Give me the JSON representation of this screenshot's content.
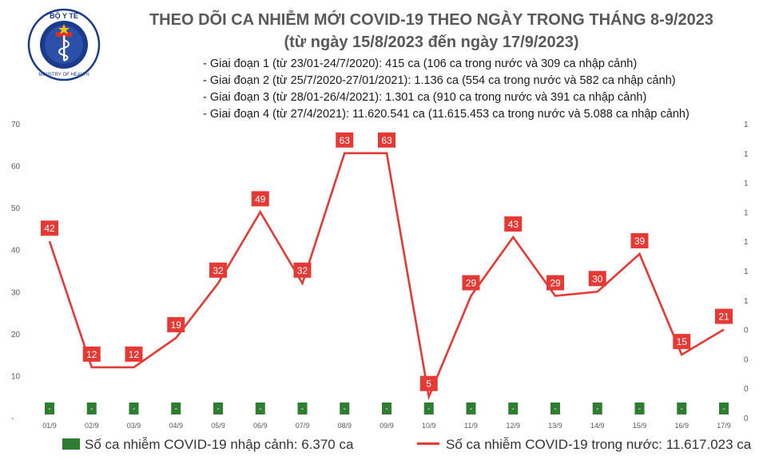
{
  "header": {
    "title": "THEO DÕI CA NHIỄM MỚI COVID-19 THEO NGÀY TRONG THÁNG 8-9/2023",
    "subtitle": "(từ ngày 15/8/2023 đến ngày 17/9/2023)",
    "logo_top_text": "BỘ Y TẾ",
    "logo_bottom_text": "MINISTRY OF HEALTH",
    "logo_icon": "caduceus-icon"
  },
  "phases": [
    "- Giai đoạn 1 (từ 23/01-24/7/2020): 415 ca (106 ca trong nước và 309 ca nhập cảnh)",
    "- Giai đoạn 2 (từ 25/7/2020-27/01/2021): 1.136 ca (554 ca trong nước và 582 ca nhập cảnh)",
    "- Giai đoạn 3 (từ 28/01-26/4/2021): 1.301 ca (910 ca trong nước và 391 ca nhập cảnh)",
    "- Giai đoạn 4 (từ 27/4/2021): 11.620.541 ca (11.615.453 ca trong nước và 5.088 ca nhập cảnh)"
  ],
  "legend": {
    "imported": "Số ca nhiễm COVID-19 nhập cảnh: 6.370 ca",
    "domestic": "Số ca nhiễm COVID-19 trong nước: 11.617.023 ca"
  },
  "colors": {
    "line": "#e53935",
    "label_box": "#e53935",
    "bar": "#2e7d32",
    "title": "#595959",
    "logo": "#1a3a8c"
  },
  "chart_data": {
    "type": "line",
    "categories": [
      "01/9",
      "02/9",
      "03/9",
      "04/9",
      "05/9",
      "06/9",
      "07/9",
      "08/9",
      "09/9",
      "10/9",
      "11/9",
      "12/9",
      "13/9",
      "14/9",
      "15/9",
      "16/9",
      "17/9"
    ],
    "series": [
      {
        "name": "Số ca nhiễm COVID-19 trong nước",
        "values": [
          42,
          12,
          12,
          19,
          32,
          49,
          32,
          63,
          63,
          5,
          29,
          43,
          29,
          30,
          39,
          15,
          21
        ],
        "axis": "left"
      },
      {
        "name": "Số ca nhiễm COVID-19 nhập cảnh",
        "type": "bar",
        "values": [
          0,
          0,
          0,
          0,
          0,
          0,
          0,
          0,
          0,
          0,
          0,
          0,
          0,
          0,
          0,
          0,
          0
        ],
        "display_labels": [
          "-",
          "-",
          "-",
          "-",
          "-",
          "-",
          "-",
          "-",
          "-",
          "-",
          "-",
          "-",
          "-",
          "-",
          "-",
          "-",
          "-"
        ],
        "axis": "right"
      }
    ],
    "ylim": [
      0,
      70
    ],
    "y_ticks": [
      0,
      10,
      20,
      30,
      40,
      50,
      60,
      70
    ],
    "y_tick_labels": [
      "-",
      "10",
      "20",
      "30",
      "40",
      "50",
      "60",
      "70"
    ],
    "y2_tick_labels": [
      "0",
      "0",
      "0",
      "0",
      "1",
      "1",
      "1",
      "1",
      "1",
      "1",
      "1"
    ],
    "grid": false
  }
}
